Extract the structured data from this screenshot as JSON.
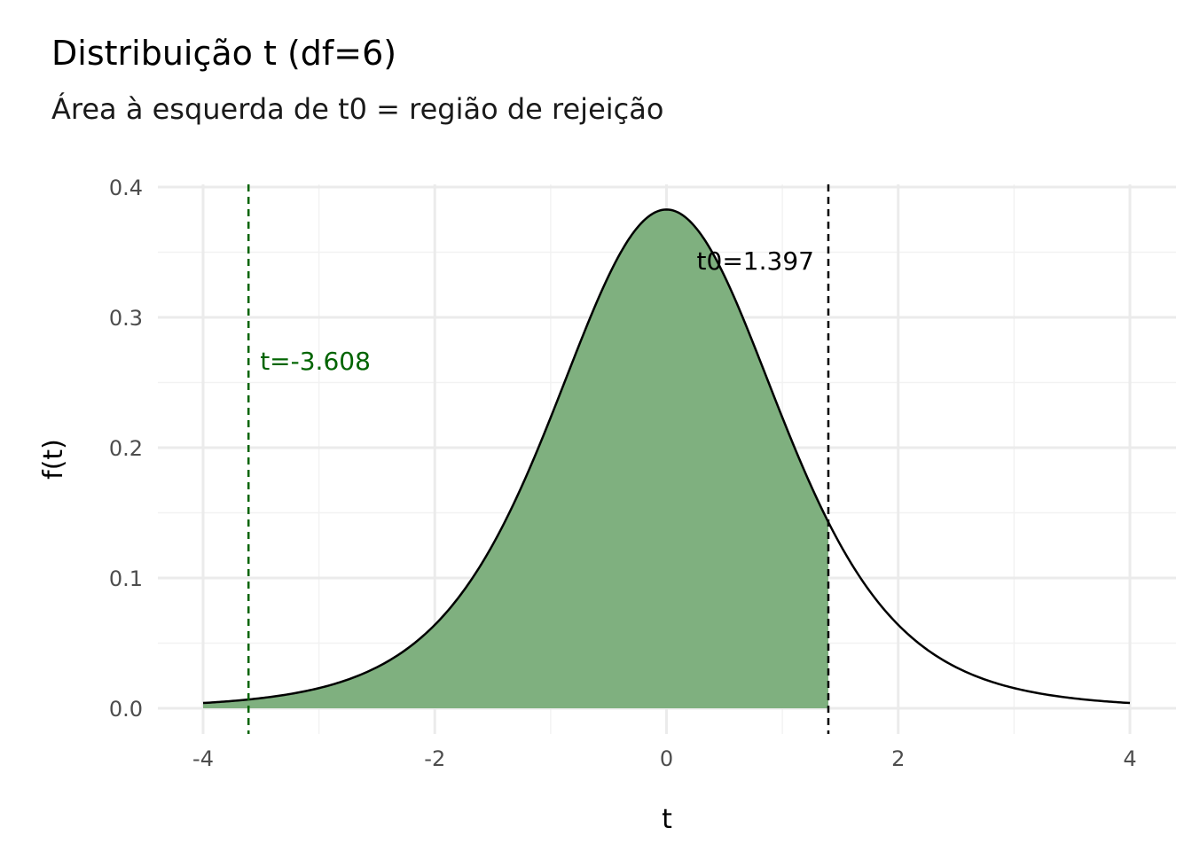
{
  "chart_data": {
    "type": "area",
    "title": "Distribuição t (df=6)",
    "subtitle": "Área à esquerda de t0 = região de rejeição",
    "xlabel": "t",
    "ylabel": "f(t)",
    "df": 6,
    "xlim": [
      -4,
      4
    ],
    "ylim": [
      0,
      0.4
    ],
    "x_ticks": [
      "-4",
      "-2",
      "0",
      "2",
      "4"
    ],
    "y_ticks": [
      "0.0",
      "0.1",
      "0.2",
      "0.3",
      "0.4"
    ],
    "grid": true,
    "shaded_region": [
      -4,
      1.397
    ],
    "vlines": [
      {
        "x": -3.608,
        "label": "t=-3.608",
        "color": "#006400",
        "style": "dashed"
      },
      {
        "x": 1.397,
        "label": "t0=1.397",
        "color": "#000000",
        "style": "dashed"
      }
    ],
    "colors": {
      "fill": "#7fb07f",
      "curve": "#000000",
      "grid": "#ebebeb"
    }
  }
}
